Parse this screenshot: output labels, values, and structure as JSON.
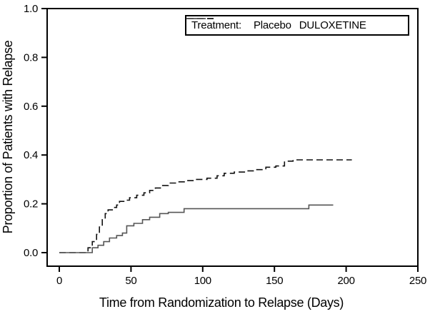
{
  "legend": {
    "title": "Treatment:",
    "entries": [
      {
        "label": "Placebo",
        "style": "dashed"
      },
      {
        "label": "DULOXETINE",
        "style": "solid"
      }
    ]
  },
  "chart_data": {
    "type": "line",
    "subtype": "kaplan-meier-step",
    "title": "",
    "xlabel": "Time from Randomization to Relapse (Days)",
    "ylabel": "Proportion of Patients with Relapse",
    "xlim": [
      0,
      250
    ],
    "ylim": [
      0.0,
      1.0
    ],
    "x_ticks": [
      0,
      50,
      100,
      150,
      200,
      250
    ],
    "y_ticks": [
      0.0,
      0.2,
      0.4,
      0.6,
      0.8,
      1.0
    ],
    "grid": false,
    "legend_position": "top-right",
    "axis_color": "#000000",
    "series": [
      {
        "name": "Placebo",
        "line_style": "dashed",
        "color": "#111111",
        "end_day": 204,
        "points": [
          [
            0,
            0.0
          ],
          [
            20,
            0.02
          ],
          [
            23,
            0.045
          ],
          [
            26,
            0.075
          ],
          [
            28,
            0.105
          ],
          [
            30,
            0.135
          ],
          [
            32,
            0.16
          ],
          [
            34,
            0.175
          ],
          [
            37,
            0.185
          ],
          [
            40,
            0.195
          ],
          [
            42,
            0.21
          ],
          [
            45,
            0.215
          ],
          [
            49,
            0.225
          ],
          [
            54,
            0.235
          ],
          [
            59,
            0.245
          ],
          [
            63,
            0.255
          ],
          [
            67,
            0.265
          ],
          [
            71,
            0.275
          ],
          [
            76,
            0.285
          ],
          [
            82,
            0.29
          ],
          [
            88,
            0.295
          ],
          [
            95,
            0.3
          ],
          [
            103,
            0.305
          ],
          [
            110,
            0.315
          ],
          [
            115,
            0.325
          ],
          [
            122,
            0.33
          ],
          [
            130,
            0.335
          ],
          [
            137,
            0.34
          ],
          [
            144,
            0.35
          ],
          [
            151,
            0.355
          ],
          [
            157,
            0.375
          ],
          [
            163,
            0.38
          ]
        ]
      },
      {
        "name": "DULOXETINE",
        "line_style": "solid",
        "color": "#555555",
        "end_day": 191,
        "points": [
          [
            0,
            0.0
          ],
          [
            23,
            0.02
          ],
          [
            27,
            0.03
          ],
          [
            31,
            0.045
          ],
          [
            35,
            0.06
          ],
          [
            40,
            0.07
          ],
          [
            44,
            0.08
          ],
          [
            47,
            0.11
          ],
          [
            52,
            0.12
          ],
          [
            58,
            0.135
          ],
          [
            63,
            0.145
          ],
          [
            70,
            0.16
          ],
          [
            76,
            0.165
          ],
          [
            87,
            0.18
          ],
          [
            174,
            0.195
          ]
        ]
      }
    ]
  }
}
